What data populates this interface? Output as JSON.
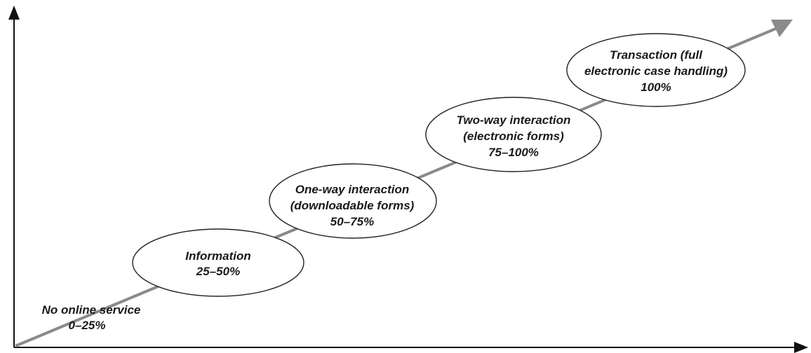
{
  "stages": [
    {
      "id": "no-online-service",
      "lines": [
        "No online service",
        "0–25%"
      ],
      "ellipse": false
    },
    {
      "id": "information",
      "lines": [
        "Information",
        "25–50%"
      ],
      "ellipse": true
    },
    {
      "id": "one-way-interaction",
      "lines": [
        "One-way interaction",
        "(downloadable forms)",
        "50–75%"
      ],
      "ellipse": true
    },
    {
      "id": "two-way-interaction",
      "lines": [
        "Two-way interaction",
        "(electronic forms)",
        "75–100%"
      ],
      "ellipse": true
    },
    {
      "id": "transaction",
      "lines": [
        "Transaction (full",
        "electronic case handling)",
        "100%"
      ],
      "ellipse": true
    }
  ],
  "colors": {
    "axis": "#111111",
    "progress_arrow": "#8a8a8a",
    "ellipse_stroke": "#222222",
    "text": "#1a1a1a"
  }
}
